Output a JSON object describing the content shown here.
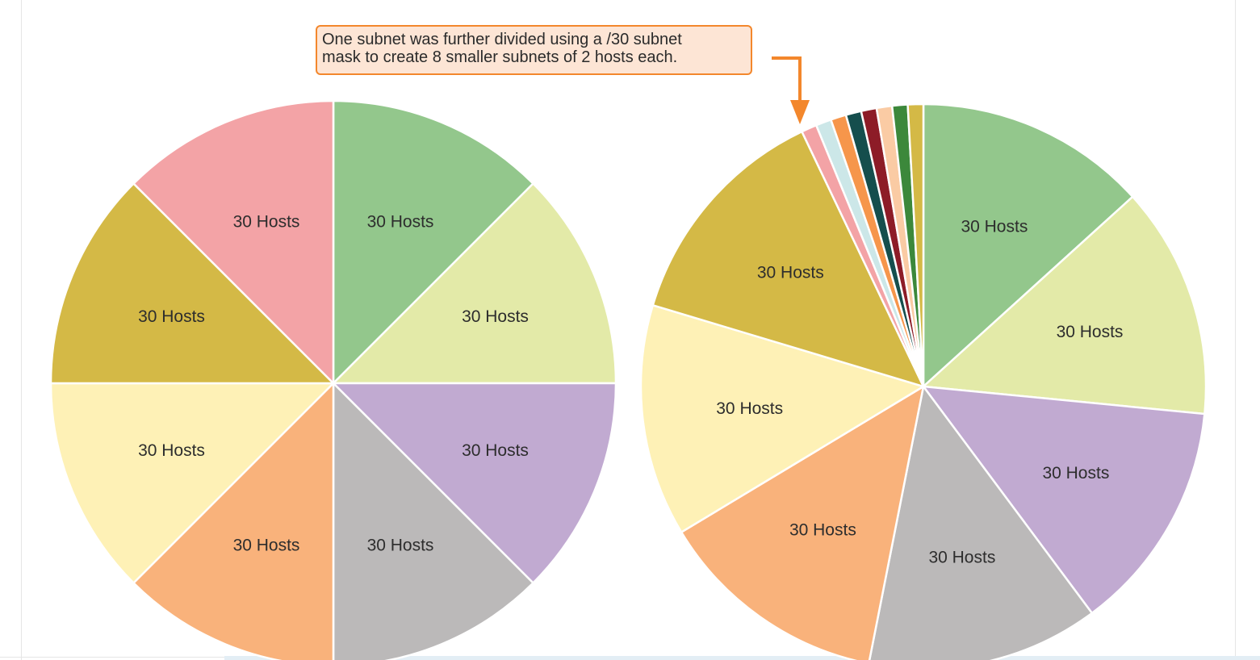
{
  "callout": {
    "line1": "One subnet was further divided using a /30 subnet",
    "line2": "mask to create 8 smaller subnets of 2 hosts each."
  },
  "colors": {
    "green": "#93c78c",
    "light_yellow_green": "#e3eaa8",
    "lavender": "#c1aad1",
    "gray": "#bbb9b9",
    "peach": "#f9b27b",
    "pale_yellow": "#fef1b6",
    "mustard": "#d4b946",
    "pink": "#f3a3a6",
    "light_cyan": "#cce7e8",
    "orange": "#f6964b",
    "dark_teal": "#154e4d",
    "dark_red": "#8d1c27",
    "light_peach": "#facba4",
    "dark_green": "#3c883b",
    "gold": "#d4b946",
    "callout_border": "#f3872c",
    "callout_fill": "#fde5d5"
  },
  "chart_data": [
    {
      "type": "pie",
      "slices": [
        {
          "label": "30 Hosts",
          "value": 30,
          "color": "#93c78c"
        },
        {
          "label": "30 Hosts",
          "value": 30,
          "color": "#e3eaa8"
        },
        {
          "label": "30 Hosts",
          "value": 30,
          "color": "#c1aad1"
        },
        {
          "label": "30 Hosts",
          "value": 30,
          "color": "#bbb9b9"
        },
        {
          "label": "30 Hosts",
          "value": 30,
          "color": "#f9b27b"
        },
        {
          "label": "30 Hosts",
          "value": 30,
          "color": "#fef1b6"
        },
        {
          "label": "30 Hosts",
          "value": 30,
          "color": "#d4b946"
        },
        {
          "label": "30 Hosts",
          "value": 30,
          "color": "#f3a3a6"
        }
      ]
    },
    {
      "type": "pie",
      "slices": [
        {
          "label": "30 Hosts",
          "value": 30,
          "color": "#93c78c"
        },
        {
          "label": "30 Hosts",
          "value": 30,
          "color": "#e3eaa8"
        },
        {
          "label": "30 Hosts",
          "value": 30,
          "color": "#c1aad1"
        },
        {
          "label": "30 Hosts",
          "value": 30,
          "color": "#bbb9b9"
        },
        {
          "label": "30 Hosts",
          "value": 30,
          "color": "#f9b27b"
        },
        {
          "label": "30 Hosts",
          "value": 30,
          "color": "#fef1b6"
        },
        {
          "label": "30 Hosts",
          "value": 30,
          "color": "#d4b946"
        },
        {
          "label": "",
          "value": 2,
          "color": "#f3a3a6"
        },
        {
          "label": "",
          "value": 2,
          "color": "#cce7e8"
        },
        {
          "label": "",
          "value": 2,
          "color": "#f6964b"
        },
        {
          "label": "",
          "value": 2,
          "color": "#154e4d"
        },
        {
          "label": "",
          "value": 2,
          "color": "#8d1c27"
        },
        {
          "label": "",
          "value": 2,
          "color": "#facba4"
        },
        {
          "label": "",
          "value": 2,
          "color": "#3c883b"
        },
        {
          "label": "",
          "value": 2,
          "color": "#d4b946"
        }
      ]
    }
  ]
}
